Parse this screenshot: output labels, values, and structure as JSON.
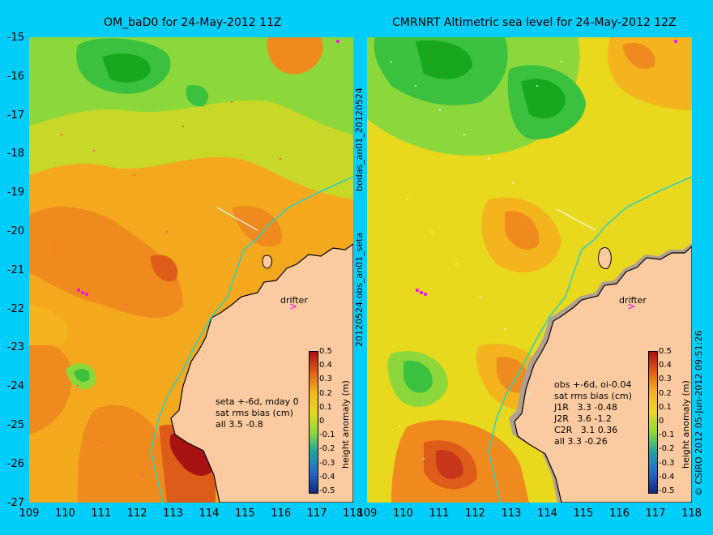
{
  "left_panel": {
    "title": "OM_baD0 for 24-May-2012 11Z",
    "notes": [
      "seta +-6d, mday 0",
      "sat rms bias (cm)",
      "all 3.5 -0.8"
    ],
    "drifter_label": "drifter"
  },
  "right_panel": {
    "title": "CMRNRT Altimetric sea level  for 24-May-2012 12Z",
    "notes": [
      "obs +-6d, oi-0.04",
      "sat rms bias (cm)",
      "J1R   3.3 -0.48",
      "J2R   3.6 -1.2",
      "C2R   3.1 0.36",
      "all 3.3 -0.26"
    ],
    "drifter_label": "drifter"
  },
  "y_ticks": [
    "-15",
    "-16",
    "-17",
    "-18",
    "-19",
    "-20",
    "-21",
    "-22",
    "-23",
    "-24",
    "-25",
    "-26",
    "-27"
  ],
  "x_ticks": [
    "109",
    "110",
    "111",
    "112",
    "113",
    "114",
    "115",
    "116",
    "117",
    "118"
  ],
  "colorbar": {
    "title": "height anomaly (m)",
    "ticks": [
      "0.5",
      "0.4",
      "0.3",
      "0.2",
      "0.1",
      "0",
      "-0.1",
      "-0.2",
      "-0.3",
      "-0.4",
      "-0.5"
    ],
    "colors": [
      "#a81212",
      "#c8361c",
      "#de5c1a",
      "#ee8a1e",
      "#f4b41e",
      "#e8d81e",
      "#a8d832",
      "#44c048",
      "#22a0a0",
      "#2868c8",
      "#14287a"
    ]
  },
  "side_labels": {
    "middle_top": "bodas_an01_20120524",
    "middle_bottom": "20120524.obs_an01_seta",
    "right_edge": "© CSIRO 2012   05-Jun-2012 09:51:26"
  },
  "colors": {
    "background": "#00cdfa",
    "land": "#fbcaa0",
    "coastline": "#000000",
    "isobath": "#30d0c0",
    "drifter": "#ff00ff"
  }
}
